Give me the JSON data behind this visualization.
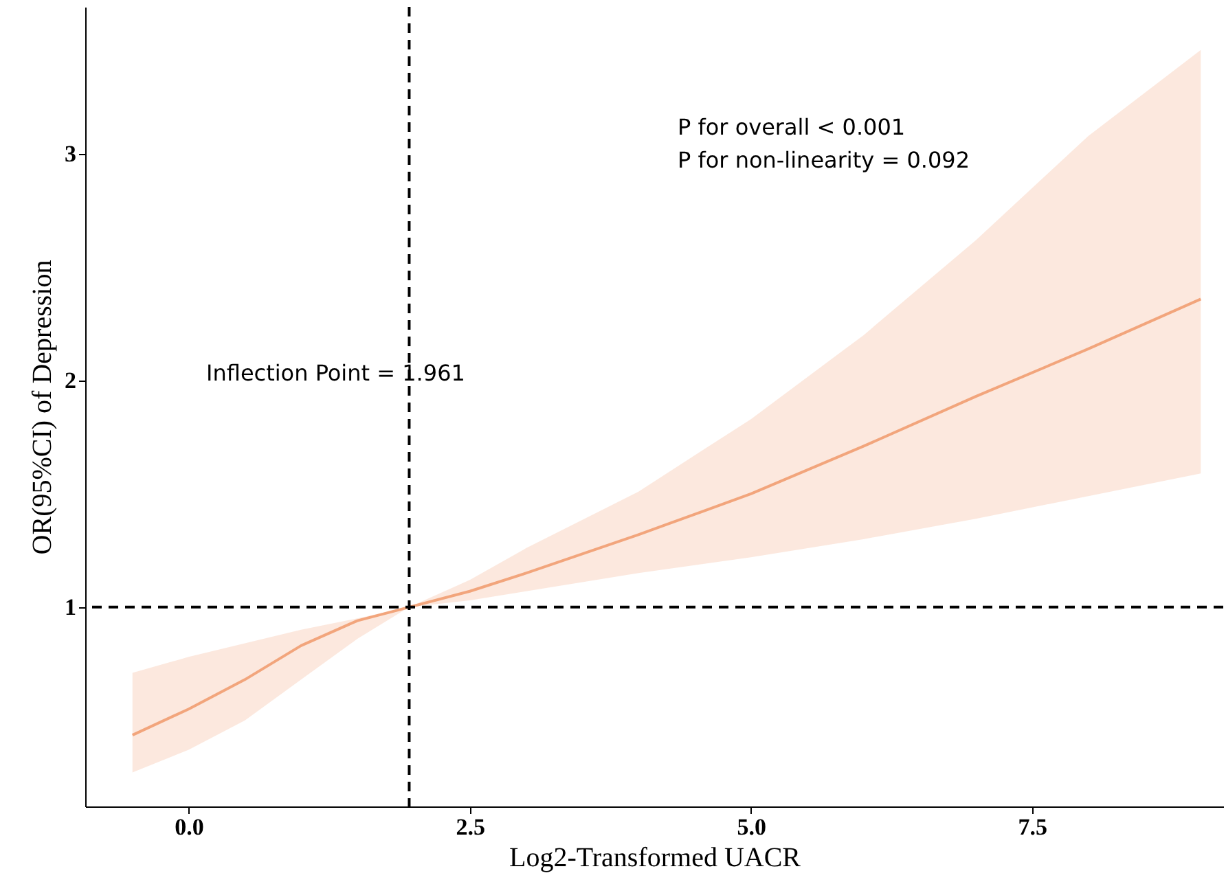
{
  "chart_data": {
    "type": "line",
    "xlabel": "Log2-Transformed UACR",
    "ylabel": "OR(95%CI) of Depression",
    "xlim": [
      -0.92,
      9.2
    ],
    "ylim": [
      0.12,
      3.65
    ],
    "xticks": [
      {
        "value": 0,
        "label": "0.0"
      },
      2.5,
      {
        "value": 5,
        "label": "5.0"
      },
      7.5
    ],
    "yticks": [
      1,
      2,
      3
    ],
    "grid": false,
    "series": [
      {
        "color": "#f2a57c",
        "x": [
          -0.5,
          0,
          0.5,
          1,
          1.5,
          1.961,
          2.5,
          3,
          4,
          5,
          6,
          7,
          8,
          9
        ],
        "values": [
          0.435,
          0.55,
          0.68,
          0.83,
          0.94,
          1,
          1.07,
          1.15,
          1.32,
          1.5,
          1.71,
          1.93,
          2.14,
          2.36
        ],
        "lower": [
          0.27,
          0.37,
          0.5,
          0.68,
          0.86,
          1,
          1.03,
          1.07,
          1.15,
          1.22,
          1.3,
          1.39,
          1.49,
          1.59
        ],
        "upper": [
          0.71,
          0.78,
          0.84,
          0.9,
          0.95,
          1,
          1.12,
          1.26,
          1.51,
          1.83,
          2.2,
          2.62,
          3.08,
          3.46
        ]
      }
    ],
    "ref_lines": [
      {
        "axis": "x",
        "value": 1.961,
        "line_style": "dashed"
      },
      {
        "axis": "y",
        "value": 1,
        "line_style": "dashed"
      }
    ],
    "annotations": [
      "Inflection Point = 1.961",
      "P for overall < 0.001",
      "P for non-linearity = 0.092"
    ]
  }
}
